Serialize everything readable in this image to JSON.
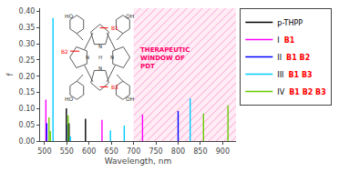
{
  "chart_data": {
    "type": "stem",
    "xlabel": "Wavelength, nm",
    "ylabel": "f",
    "xlim": [
      490,
      930
    ],
    "ylim": [
      0,
      0.41
    ],
    "xticks": [
      500,
      550,
      600,
      650,
      700,
      750,
      800,
      850,
      900
    ],
    "yticks": [
      {
        "value": 0,
        "label": "0.00"
      },
      0.05,
      {
        "value": 0.1,
        "label": "0.10"
      },
      0.15,
      {
        "value": 0.2,
        "label": "0.20"
      },
      0.25,
      {
        "value": 0.3,
        "label": "0.30"
      },
      0.35,
      {
        "value": 0.4,
        "label": "0.40"
      }
    ],
    "grid": false,
    "legend": "upper right",
    "series": [
      {
        "name": "p-THPP",
        "color": "#000000",
        "x": [
          549,
          555,
          592
        ],
        "values": [
          0.101,
          0.055,
          0.069
        ]
      },
      {
        "name": "I",
        "color": "#ff00ff",
        "b_label": "B1",
        "x": [
          503,
          629,
          720
        ],
        "values": [
          0.128,
          0.065,
          0.082
        ]
      },
      {
        "name": "II",
        "color": "#0000ff",
        "b_label": "B1 B2",
        "x": [
          505,
          552,
          800
        ],
        "values": [
          0.055,
          0.051,
          0.093
        ]
      },
      {
        "name": "III",
        "color": "#00ccff",
        "b_label": "B1 B3",
        "x": [
          519,
          558,
          648,
          679,
          827
        ],
        "values": [
          0.38,
          0.015,
          0.033,
          0.048,
          0.132
        ]
      },
      {
        "name": "IV",
        "color": "#66cc00",
        "b_label": "B1 B2 B3",
        "x": [
          510,
          513,
          553,
          857,
          912
        ],
        "values": [
          0.073,
          0.031,
          0.079,
          0.085,
          0.11
        ]
      }
    ],
    "b_label_color": "#ff0000",
    "shaded_region": {
      "x": [
        700,
        930
      ],
      "color": "#ff69b4"
    },
    "annotations": [
      {
        "text": "THERAPEUTIC\nWINDOW OF\nPDT",
        "color": "#ff0066"
      }
    ],
    "structure": {
      "color": "#333333",
      "ho_labels": [
        "HO",
        "OH",
        "HO",
        "OH"
      ],
      "ring_labels": [
        "N",
        "N",
        "N",
        "N",
        "H"
      ],
      "site_labels": [
        "B1",
        "B2",
        "B3"
      ]
    }
  }
}
